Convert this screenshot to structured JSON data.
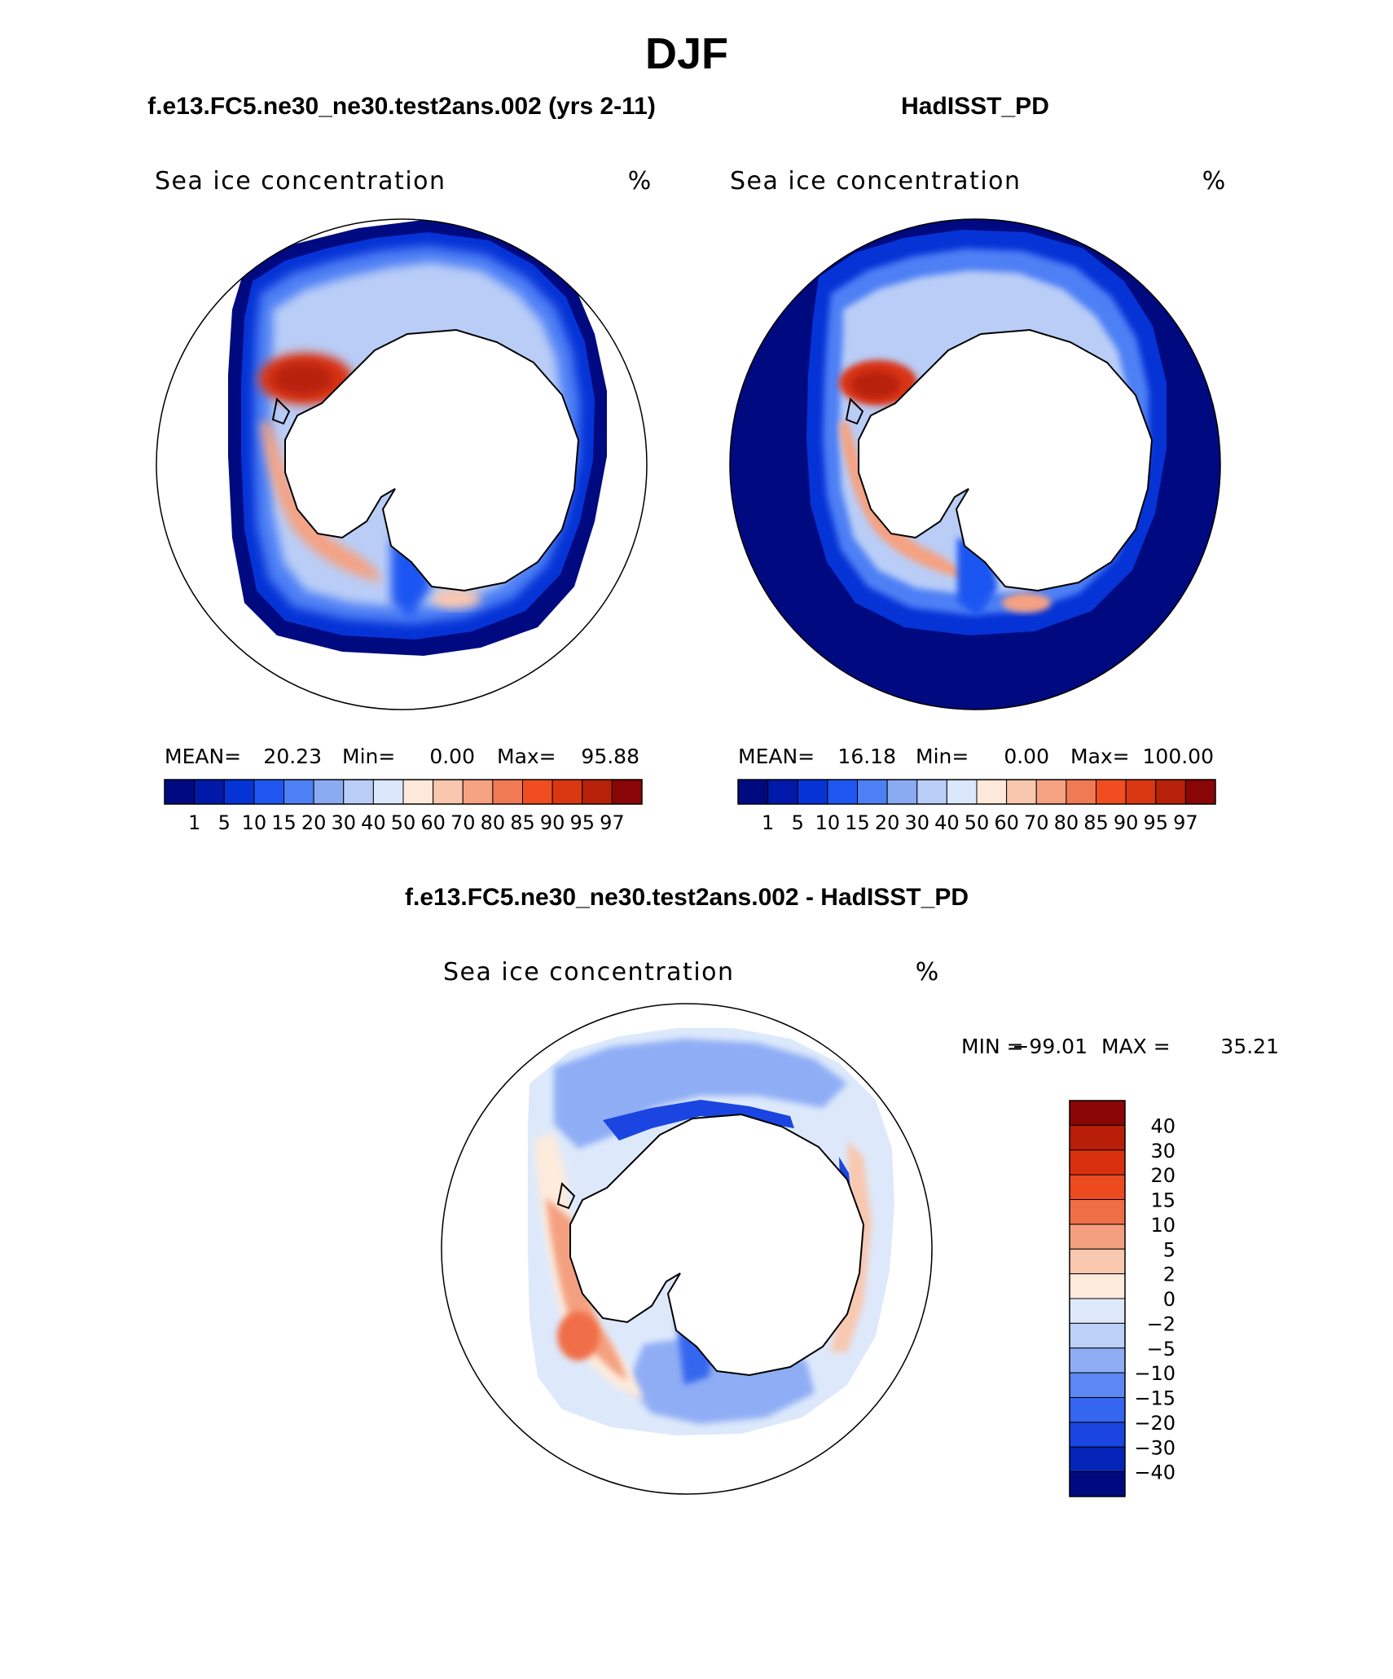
{
  "page_title": "DJF",
  "colors": {
    "seq": [
      "#000a80",
      "#0019a8",
      "#0533d6",
      "#1f56f2",
      "#4d7ff5",
      "#8aaaf2",
      "#b9cdf7",
      "#dbe7fb",
      "#fde8da",
      "#f9c7ad",
      "#f5a282",
      "#f07a53",
      "#f04e20",
      "#d93612",
      "#b82109",
      "#8a0606"
    ],
    "diff": [
      "#000a80",
      "#0524b8",
      "#1a45e0",
      "#3566f0",
      "#5d87f2",
      "#8fadf5",
      "#bcd1f8",
      "#dde9fb",
      "#fdebdc",
      "#f8c8b0",
      "#f4a080",
      "#f06e46",
      "#ec4a1f",
      "#d9310f",
      "#b81e08",
      "#8a0606"
    ]
  },
  "chart_data": [
    {
      "type": "heatmap",
      "subtitle": "f.e13.FC5.ne30_ne30.test2ans.002 (yrs 2-11)",
      "title": "Sea ice concentration",
      "units": "%",
      "projection": "south-polar-stereographic",
      "stats": {
        "mean_label": "MEAN=",
        "mean": "20.23",
        "min_label": "Min=",
        "min": "0.00",
        "max_label": "Max=",
        "max": "95.88"
      },
      "colorbar": {
        "orientation": "horizontal",
        "levels": [
          "1",
          "5",
          "10",
          "15",
          "20",
          "30",
          "40",
          "50",
          "60",
          "70",
          "80",
          "85",
          "90",
          "95",
          "97"
        ]
      }
    },
    {
      "type": "heatmap",
      "subtitle": "HadISST_PD",
      "title": "Sea ice concentration",
      "units": "%",
      "projection": "south-polar-stereographic",
      "stats": {
        "mean_label": "MEAN=",
        "mean": "16.18",
        "min_label": "Min=",
        "min": "0.00",
        "max_label": "Max=",
        "max": "100.00"
      },
      "colorbar": {
        "orientation": "horizontal",
        "levels": [
          "1",
          "5",
          "10",
          "15",
          "20",
          "30",
          "40",
          "50",
          "60",
          "70",
          "80",
          "85",
          "90",
          "95",
          "97"
        ]
      }
    },
    {
      "type": "heatmap",
      "subtitle": "f.e13.FC5.ne30_ne30.test2ans.002 - HadISST_PD",
      "title": "Sea ice concentration",
      "units": "%",
      "projection": "south-polar-stereographic",
      "stats": {
        "min_label": "MIN =",
        "min": "−99.01",
        "max_label": "MAX =",
        "max": "35.21"
      },
      "colorbar": {
        "orientation": "vertical",
        "levels": [
          "40",
          "30",
          "20",
          "15",
          "10",
          "5",
          "2",
          "0",
          "−2",
          "−5",
          "−10",
          "−15",
          "−20",
          "−30",
          "−40"
        ]
      }
    }
  ]
}
